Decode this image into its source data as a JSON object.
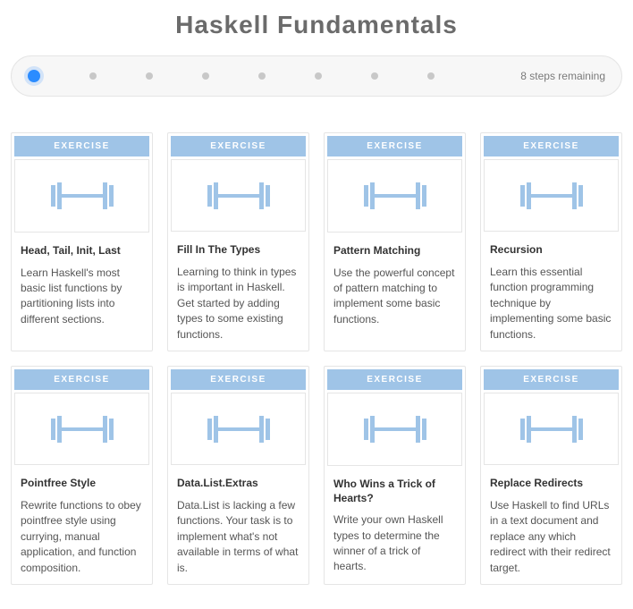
{
  "title": "Haskell Fundamentals",
  "progress": {
    "total_steps": 8,
    "remaining_label": "8 steps remaining",
    "active_index": 0,
    "active_color": "#2b8cff",
    "inactive_color": "#c8c8c8",
    "bar_bg": "#f7f7f7",
    "bar_border": "#e5e5e5"
  },
  "card_style": {
    "tag_bg": "#9fc4e7",
    "tag_text_color": "#ffffff",
    "card_border": "#e5e5e5",
    "icon_color": "#9fc4e7"
  },
  "cards": [
    {
      "tag": "EXERCISE",
      "title": "Head, Tail, Init, Last",
      "desc": "Learn Haskell's most basic list functions by partitioning lists into different sections."
    },
    {
      "tag": "EXERCISE",
      "title": "Fill In The Types",
      "desc": "Learning to think in types is important in Haskell. Get started by adding types to some existing functions."
    },
    {
      "tag": "EXERCISE",
      "title": "Pattern Matching",
      "desc": "Use the powerful concept of pattern matching to implement some basic functions."
    },
    {
      "tag": "EXERCISE",
      "title": "Recursion",
      "desc": "Learn this essential function programming technique by implementing some basic functions."
    },
    {
      "tag": "EXERCISE",
      "title": "Pointfree Style",
      "desc": "Rewrite functions to obey pointfree style using currying, manual application, and function composition."
    },
    {
      "tag": "EXERCISE",
      "title": "Data.List.Extras",
      "desc": "Data.List is lacking a few functions. Your task is to implement what's not available in terms of what is."
    },
    {
      "tag": "EXERCISE",
      "title": "Who Wins a Trick of Hearts?",
      "desc": "Write your own Haskell types to determine the winner of a trick of hearts."
    },
    {
      "tag": "EXERCISE",
      "title": "Replace Redirects",
      "desc": "Use Haskell to find URLs in a text document and replace any which redirect with their redirect target."
    }
  ]
}
